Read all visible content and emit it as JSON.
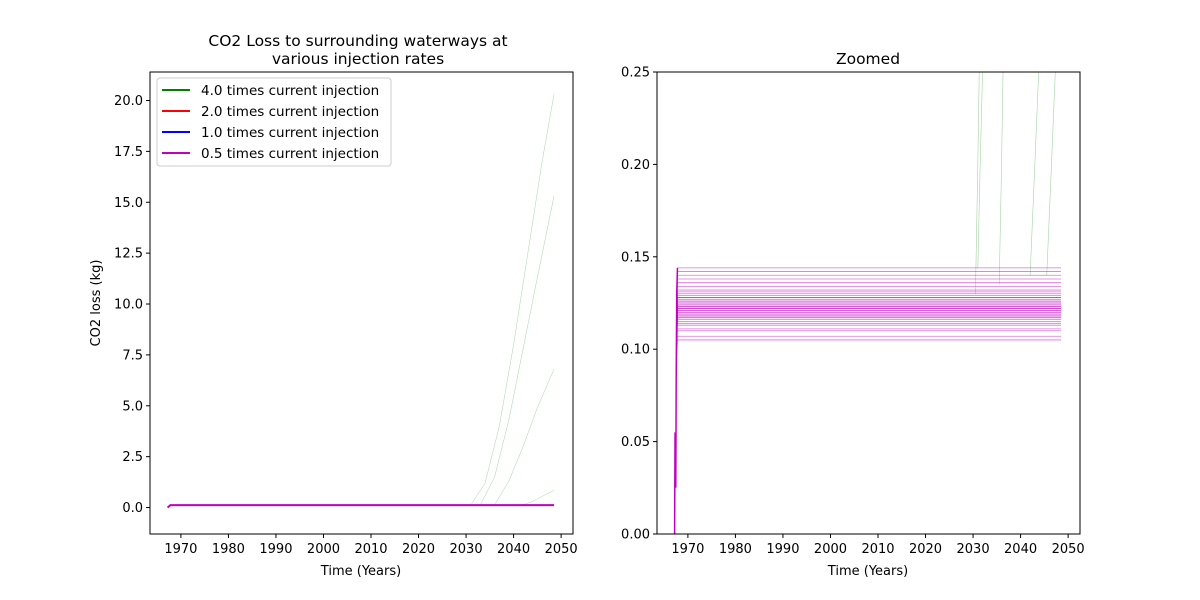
{
  "chart_data": [
    {
      "type": "line",
      "title_lines": [
        "CO2 Loss to surrounding waterways at",
        "various injection rates"
      ],
      "xlabel": "Time (Years)",
      "ylabel": "CO2 loss (kg)",
      "xlim": [
        1963.5,
        2052.5
      ],
      "ylim": [
        -1.3,
        21.4
      ],
      "xticks": [
        1970,
        1980,
        1990,
        2000,
        2010,
        2020,
        2030,
        2040,
        2050
      ],
      "yticks": [
        0.0,
        2.5,
        5.0,
        7.5,
        10.0,
        12.5,
        15.0,
        17.5,
        20.0
      ],
      "ytick_labels": [
        "0.0",
        "2.5",
        "5.0",
        "7.5",
        "10.0",
        "12.5",
        "15.0",
        "17.5",
        "20.0"
      ],
      "legend_position": "top-left",
      "series": [
        {
          "name": "4.0 times current injection",
          "color": "#008000"
        },
        {
          "name": "2.0 times current injection",
          "color": "#ff0000"
        },
        {
          "name": "1.0 times current injection",
          "color": "#0000ff"
        },
        {
          "name": "0.5 times current injection",
          "color": "#bf00bf"
        }
      ],
      "curves": [
        {
          "series": "4.0 times current injection",
          "x": [
            2031,
            2034,
            2037,
            2040,
            2043,
            2046,
            2048.5
          ],
          "y": [
            0.13,
            1.2,
            4.0,
            8.0,
            12.5,
            17.0,
            20.3
          ]
        },
        {
          "series": "4.0 times current injection",
          "x": [
            2033,
            2036,
            2039,
            2042,
            2045,
            2048.5
          ],
          "y": [
            0.13,
            1.5,
            4.3,
            7.8,
            11.3,
            15.3
          ]
        },
        {
          "series": "4.0 times current injection",
          "x": [
            2036,
            2039,
            2042,
            2045,
            2048.5
          ],
          "y": [
            0.13,
            1.3,
            3.0,
            4.9,
            6.8
          ]
        },
        {
          "series": "4.0 times current injection",
          "x": [
            2042,
            2044,
            2046,
            2048.5
          ],
          "y": [
            0.13,
            0.3,
            0.55,
            0.85
          ]
        },
        {
          "series": "0.5 times current injection",
          "x": [
            1967.2,
            1967.8,
            2048.5
          ],
          "y": [
            0.0,
            0.12,
            0.12
          ]
        }
      ]
    },
    {
      "type": "line",
      "title": "Zoomed",
      "xlabel": "Time (Years)",
      "ylabel": "",
      "xlim": [
        1963.5,
        2052.5
      ],
      "ylim": [
        0.0,
        0.25
      ],
      "xticks": [
        1970,
        1980,
        1990,
        2000,
        2010,
        2020,
        2030,
        2040,
        2050
      ],
      "yticks": [
        0.0,
        0.05,
        0.1,
        0.15,
        0.2,
        0.25
      ],
      "ytick_labels": [
        "0.00",
        "0.05",
        "0.10",
        "0.15",
        "0.20",
        "0.25"
      ],
      "plateau_levels": [
        0.105,
        0.107,
        0.11,
        0.111,
        0.113,
        0.114,
        0.115,
        0.116,
        0.117,
        0.117,
        0.118,
        0.118,
        0.119,
        0.119,
        0.12,
        0.12,
        0.121,
        0.121,
        0.122,
        0.122,
        0.123,
        0.123,
        0.124,
        0.124,
        0.125,
        0.125,
        0.126,
        0.126,
        0.127,
        0.128,
        0.128,
        0.129,
        0.13,
        0.131,
        0.132,
        0.134,
        0.136,
        0.138,
        0.14,
        0.142,
        0.144
      ],
      "plateau_x": [
        1967.8,
        2048.5
      ],
      "rising_curves": [
        {
          "series": "4.0 times current injection",
          "x": [
            2031.0,
            2031.5,
            2032.0
          ],
          "y": [
            0.144,
            0.2,
            0.25
          ]
        },
        {
          "series": "4.0 times current injection",
          "x": [
            2030.5,
            2031.0,
            2031.3
          ],
          "y": [
            0.13,
            0.2,
            0.25
          ]
        },
        {
          "series": "4.0 times current injection",
          "x": [
            2035.5,
            2036.0,
            2036.3
          ],
          "y": [
            0.135,
            0.2,
            0.25
          ]
        },
        {
          "series": "4.0 times current injection",
          "x": [
            2042.0,
            2043.0,
            2043.8
          ],
          "y": [
            0.14,
            0.2,
            0.25
          ]
        },
        {
          "series": "4.0 times current injection",
          "x": [
            2045.5,
            2046.5,
            2047.3
          ],
          "y": [
            0.14,
            0.2,
            0.25
          ]
        }
      ],
      "spike": {
        "x": [
          1967.2,
          1967.3,
          1967.45,
          1967.55,
          1967.65,
          1967.8
        ],
        "y": [
          0.0,
          0.055,
          0.025,
          0.09,
          0.13,
          0.144
        ]
      }
    }
  ]
}
